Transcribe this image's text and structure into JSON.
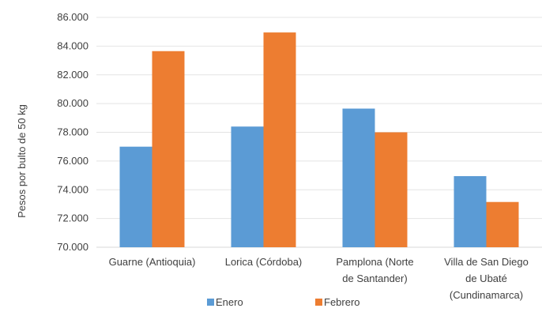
{
  "chart_data": {
    "type": "bar",
    "title": "",
    "xlabel": "",
    "ylabel": "Pesos por bulto de 50 kg",
    "ylim": [
      70000,
      86000
    ],
    "yticks": [
      70000,
      72000,
      74000,
      76000,
      78000,
      80000,
      82000,
      84000,
      86000
    ],
    "ytick_labels": [
      "70.000",
      "72.000",
      "74.000",
      "76.000",
      "78.000",
      "80.000",
      "82.000",
      "84.000",
      "86.000"
    ],
    "grid": true,
    "legend_position": "bottom",
    "categories": [
      [
        "Guarne (Antioquia)"
      ],
      [
        "Lorica (Córdoba)"
      ],
      [
        "Pamplona (Norte",
        "de Santander)"
      ],
      [
        "Villa de San Diego",
        "de Ubaté",
        "(Cundinamarca)"
      ]
    ],
    "series": [
      {
        "name": "Enero",
        "color": "#5B9BD5",
        "values": [
          77000,
          78400,
          79650,
          74950
        ]
      },
      {
        "name": "Febrero",
        "color": "#ED7D31",
        "values": [
          83650,
          84950,
          78000,
          73150
        ]
      }
    ]
  }
}
